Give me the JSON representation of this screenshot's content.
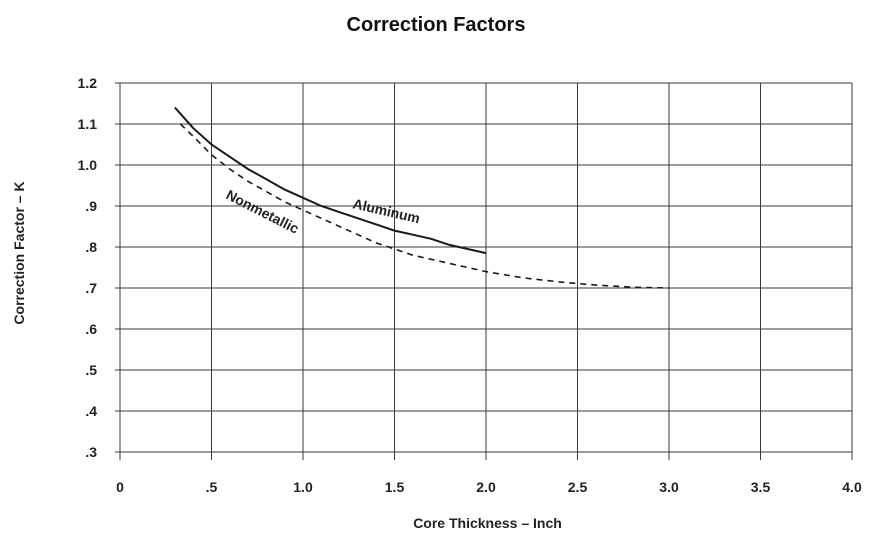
{
  "chart_data": {
    "type": "line",
    "title": "Correction Factors",
    "xlabel": "Core Thickness – Inch",
    "ylabel": "Correction Factor – K",
    "xlim": [
      0,
      4.0
    ],
    "ylim": [
      0.3,
      1.2
    ],
    "x_ticks": [
      0,
      0.5,
      1.0,
      1.5,
      2.0,
      2.5,
      3.0,
      3.5,
      4.0
    ],
    "x_tick_labels": [
      "0",
      ".5",
      "1.0",
      "1.5",
      "2.0",
      "2.5",
      "3.0",
      "3.5",
      "4.0"
    ],
    "y_ticks": [
      1.2,
      1.1,
      1.0,
      0.9,
      0.8,
      0.7,
      0.6,
      0.5,
      0.4,
      0.3
    ],
    "y_tick_labels": [
      "1.2",
      "1.1",
      "1.0",
      ".9",
      ".8",
      ".7",
      ".6",
      ".5",
      ".4",
      ".3"
    ],
    "grid": true,
    "series": [
      {
        "name": "Aluminum",
        "style": "solid",
        "x": [
          0.3,
          0.4,
          0.5,
          0.6,
          0.7,
          0.8,
          0.9,
          1.0,
          1.1,
          1.2,
          1.3,
          1.4,
          1.5,
          1.6,
          1.7,
          1.8,
          1.9,
          2.0
        ],
        "y": [
          1.14,
          1.09,
          1.05,
          1.02,
          0.99,
          0.965,
          0.94,
          0.92,
          0.9,
          0.885,
          0.87,
          0.855,
          0.84,
          0.83,
          0.82,
          0.805,
          0.795,
          0.785
        ]
      },
      {
        "name": "Nonmetallic",
        "style": "dashed",
        "x": [
          0.33,
          0.4,
          0.5,
          0.6,
          0.7,
          0.8,
          0.9,
          1.0,
          1.1,
          1.2,
          1.3,
          1.4,
          1.5,
          1.6,
          1.8,
          2.0,
          2.2,
          2.4,
          2.6,
          2.8,
          3.0
        ],
        "y": [
          1.1,
          1.07,
          1.025,
          0.99,
          0.96,
          0.935,
          0.91,
          0.89,
          0.87,
          0.85,
          0.83,
          0.81,
          0.795,
          0.78,
          0.76,
          0.74,
          0.725,
          0.715,
          0.707,
          0.702,
          0.7
        ]
      }
    ]
  }
}
